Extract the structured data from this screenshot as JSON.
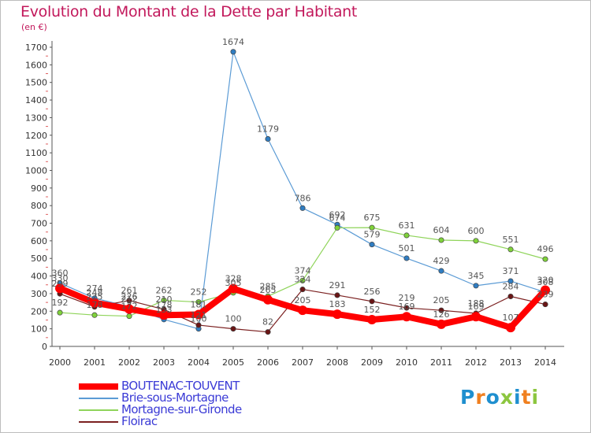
{
  "title": "Evolution du Montant de la Dette par Habitant",
  "subtitle": "(en €)",
  "logo_text": "Proxiti",
  "colors": {
    "title": "#c2185b",
    "axis": "#555555",
    "legend_text": "#3b3bd6",
    "logo": [
      "#1f8fcf",
      "#f08020",
      "#1f8fcf",
      "#8cc63f",
      "#1f8fcf",
      "#f08020",
      "#8cc63f"
    ]
  },
  "chart_data": {
    "type": "line",
    "title": "Evolution du Montant de la Dette par Habitant",
    "ylabel": "(en €)",
    "ylim": [
      0,
      1700
    ],
    "yticks": [
      0,
      100,
      200,
      300,
      400,
      500,
      600,
      700,
      800,
      900,
      1000,
      1100,
      1200,
      1300,
      1400,
      1500,
      1600,
      1700
    ],
    "x": [
      "2000",
      "2001",
      "2002",
      "2003",
      "2004",
      "2005",
      "2006",
      "2007",
      "2008",
      "2009",
      "2010",
      "2011",
      "2012",
      "2013",
      "2014"
    ],
    "grid": false,
    "legend_position": "bottom-left",
    "series": [
      {
        "name": "BOUTENAC-TOUVENT",
        "color": "#ff0000",
        "width": 8,
        "values": [
          330,
          248,
          212,
          178,
          181,
          328,
          265,
          205,
          183,
          152,
          169,
          126,
          169,
          107,
          320
        ]
      },
      {
        "name": "Brie-sous-Mortagne",
        "color": "#5b9bd5",
        "width": 1.2,
        "values": [
          360,
          274,
          226,
          153,
          100,
          1674,
          1179,
          786,
          692,
          579,
          501,
          429,
          345,
          371,
          308
        ]
      },
      {
        "name": "Mortagne-sur-Gironde",
        "color": "#8fd45a",
        "width": 1.2,
        "values": [
          192,
          178,
          172,
          262,
          252,
          305,
          285,
          374,
          674,
          675,
          631,
          604,
          600,
          551,
          496
        ]
      },
      {
        "name": "Floirac",
        "color": "#7b2020",
        "width": 1.2,
        "values": [
          299,
          225,
          261,
          210,
          121,
          100,
          82,
          324,
          291,
          256,
          219,
          205,
          188,
          284,
          239
        ]
      }
    ]
  },
  "legend": [
    {
      "label": "BOUTENAC-TOUVENT"
    },
    {
      "label": "Brie-sous-Mortagne"
    },
    {
      "label": "Mortagne-sur-Gironde"
    },
    {
      "label": "Floirac"
    }
  ]
}
